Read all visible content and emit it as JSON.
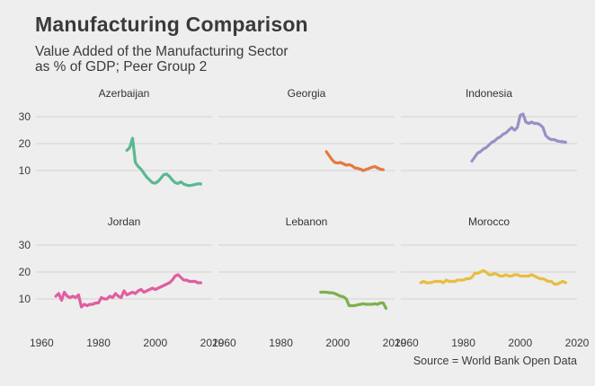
{
  "title": "Manufacturing Comparison",
  "subtitle_line1": "Value Added of the Manufacturing Sector",
  "subtitle_line2": "as % of GDP; Peer Group 2",
  "caption": "Source = World Bank Open Data",
  "chart_data": {
    "type": "line",
    "facets": true,
    "grid": true,
    "x_ticks": [
      1960,
      1980,
      2000,
      2020
    ],
    "y_ticks": [
      10,
      20,
      30
    ],
    "xlim": [
      1958,
      2020
    ],
    "ylim": [
      3,
      33
    ],
    "series": [
      {
        "name": "Azerbaijan",
        "color": "#5ab891",
        "x": [
          1990,
          1991,
          1992,
          1993,
          1994,
          1995,
          1996,
          1997,
          1998,
          1999,
          2000,
          2001,
          2002,
          2003,
          2004,
          2005,
          2006,
          2007,
          2008,
          2009,
          2010,
          2011,
          2012,
          2013,
          2014,
          2015,
          2016
        ],
        "y": [
          17.5,
          18.5,
          22,
          13,
          11.5,
          10.5,
          9,
          7.5,
          6.5,
          5.5,
          5.3,
          6,
          7.2,
          8.5,
          8.7,
          7.8,
          6.5,
          5.5,
          5.2,
          5.8,
          5,
          4.6,
          4.4,
          4.6,
          4.8,
          5.1,
          5
        ]
      },
      {
        "name": "Georgia",
        "color": "#e37a3f",
        "x": [
          1996,
          1997,
          1998,
          1999,
          2000,
          2001,
          2002,
          2003,
          2004,
          2005,
          2006,
          2007,
          2008,
          2009,
          2010,
          2011,
          2012,
          2013,
          2014,
          2015,
          2016
        ],
        "y": [
          17,
          15.5,
          14,
          13,
          12.8,
          13,
          12.5,
          12,
          12.2,
          11.8,
          11,
          10.8,
          10.5,
          10,
          10.4,
          10.8,
          11.2,
          11.5,
          11,
          10.5,
          10.3
        ]
      },
      {
        "name": "Indonesia",
        "color": "#9b8fc4",
        "x": [
          1983,
          1984,
          1985,
          1986,
          1987,
          1988,
          1989,
          1990,
          1991,
          1992,
          1993,
          1994,
          1995,
          1996,
          1997,
          1998,
          1999,
          2000,
          2001,
          2002,
          2003,
          2004,
          2005,
          2006,
          2007,
          2008,
          2009,
          2010,
          2011,
          2012,
          2013,
          2014,
          2015,
          2016
        ],
        "y": [
          13.5,
          15,
          16.5,
          17,
          18,
          18.5,
          19.5,
          20.5,
          21,
          22,
          22.5,
          23.5,
          24,
          25,
          26,
          25,
          26,
          30.5,
          31,
          28,
          27.5,
          28,
          27.5,
          27.5,
          27,
          26,
          23,
          22,
          21.5,
          21.5,
          21,
          20.8,
          20.7,
          20.5
        ]
      },
      {
        "name": "Jordan",
        "color": "#e05ea0",
        "x": [
          1965,
          1966,
          1967,
          1968,
          1969,
          1970,
          1971,
          1972,
          1973,
          1974,
          1975,
          1976,
          1977,
          1978,
          1979,
          1980,
          1981,
          1982,
          1983,
          1984,
          1985,
          1986,
          1987,
          1988,
          1989,
          1990,
          1991,
          1992,
          1993,
          1994,
          1995,
          1996,
          1997,
          1998,
          1999,
          2000,
          2001,
          2002,
          2003,
          2004,
          2005,
          2006,
          2007,
          2008,
          2009,
          2010,
          2011,
          2012,
          2013,
          2014,
          2015,
          2016
        ],
        "y": [
          11,
          12,
          9.5,
          12.5,
          11,
          10.5,
          11,
          10.5,
          11.5,
          7,
          8,
          7.5,
          8,
          8,
          8.5,
          8.5,
          10.5,
          10,
          10,
          11,
          10.5,
          12,
          11,
          10.5,
          13,
          11.5,
          12,
          12.5,
          12,
          13,
          13.5,
          12.5,
          13,
          13.5,
          14,
          13.5,
          14,
          14.5,
          15,
          15.5,
          16,
          17,
          18.5,
          19,
          18,
          17,
          17,
          16.5,
          16.5,
          16.5,
          16,
          16
        ]
      },
      {
        "name": "Lebanon",
        "color": "#7db04a",
        "x": [
          1994,
          1995,
          1996,
          1997,
          1998,
          1999,
          2000,
          2001,
          2002,
          2003,
          2004,
          2005,
          2006,
          2007,
          2008,
          2009,
          2010,
          2011,
          2012,
          2013,
          2014,
          2015,
          2016,
          2017
        ],
        "y": [
          12.5,
          12.5,
          12.5,
          12.3,
          12.3,
          12,
          11.5,
          11,
          10.8,
          10,
          7.5,
          7.5,
          7.5,
          7.8,
          8,
          8.2,
          8,
          8,
          8,
          8.2,
          8,
          8.5,
          8.5,
          6.5
        ]
      },
      {
        "name": "Morocco",
        "color": "#e6be42",
        "x": [
          1965,
          1966,
          1967,
          1968,
          1969,
          1970,
          1971,
          1972,
          1973,
          1974,
          1975,
          1976,
          1977,
          1978,
          1979,
          1980,
          1981,
          1982,
          1983,
          1984,
          1985,
          1986,
          1987,
          1988,
          1989,
          1990,
          1991,
          1992,
          1993,
          1994,
          1995,
          1996,
          1997,
          1998,
          1999,
          2000,
          2001,
          2002,
          2003,
          2004,
          2005,
          2006,
          2007,
          2008,
          2009,
          2010,
          2011,
          2012,
          2013,
          2014,
          2015,
          2016
        ],
        "y": [
          16,
          16.5,
          16,
          16,
          16.2,
          16.5,
          16.5,
          16.5,
          16,
          17,
          16.5,
          16.5,
          16.5,
          17,
          17,
          17,
          17.5,
          17.5,
          18,
          19.5,
          19.5,
          20,
          20.5,
          20,
          19,
          19,
          19.5,
          19,
          18.5,
          18.5,
          19,
          18.5,
          18.5,
          19,
          19,
          18.5,
          18.5,
          18.5,
          18.5,
          19,
          18.5,
          18,
          17.5,
          17.5,
          17,
          16.5,
          16.5,
          15.5,
          15.5,
          16,
          16.5,
          16
        ]
      }
    ]
  }
}
